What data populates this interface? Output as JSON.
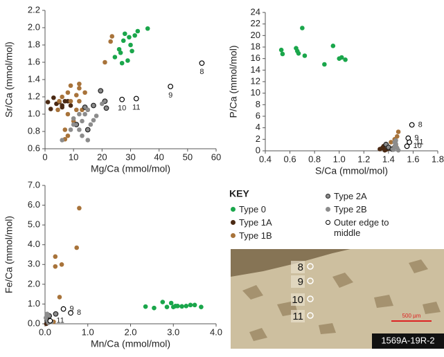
{
  "chart_data": [
    {
      "type": "scatter",
      "xlabel": "Mg/Ca (mmol/mol)",
      "ylabel": "Sr/Ca (mmol/mol)",
      "xlim": [
        0,
        60
      ],
      "xticks": [
        0,
        10,
        20,
        30,
        40,
        50,
        60
      ],
      "ylim": [
        0.6,
        2.2
      ],
      "yticks": [
        0.6,
        0.8,
        {
          "value": 1,
          "label": "1.0"
        },
        1.2,
        1.4,
        1.6,
        1.8,
        {
          "value": 2,
          "label": "2.0"
        },
        2.2
      ],
      "series": [
        {
          "name": "Type 0",
          "color": "#1aa64b",
          "x": [
            24.5,
            26.5,
            26,
            27.5,
            28,
            29.5,
            30,
            30.5,
            31.5,
            32.5,
            36,
            27,
            29
          ],
          "values": [
            1.66,
            1.71,
            1.75,
            1.85,
            1.93,
            1.89,
            1.8,
            1.73,
            1.91,
            1.96,
            1.99,
            1.59,
            1.62
          ]
        },
        {
          "name": "Type 1A",
          "color": "#4b2a14",
          "x": [
            1,
            3,
            4,
            5,
            6,
            2,
            8,
            9,
            6,
            7
          ],
          "values": [
            1.14,
            1.19,
            1.12,
            1.14,
            1.1,
            1.06,
            1.15,
            1.1,
            1.08,
            1.15
          ]
        },
        {
          "name": "Type 1B",
          "color": "#a8733a",
          "x": [
            23.5,
            23,
            21,
            9,
            12,
            12,
            8,
            11,
            14,
            5,
            6,
            9,
            12,
            13,
            11,
            8,
            15,
            4.5,
            7,
            10,
            8,
            7
          ],
          "values": [
            1.9,
            1.84,
            1.6,
            1.33,
            1.35,
            1.3,
            1.25,
            1.22,
            1.25,
            1.15,
            1.2,
            1.15,
            1.15,
            1.05,
            1.05,
            1.0,
            1.05,
            1.05,
            0.82,
            0.92,
            0.75,
            0.71
          ]
        },
        {
          "name": "Type 2A",
          "color": "#8c8c8c",
          "edge": "#222222",
          "x": [
            19.5,
            21,
            21.5,
            11,
            15,
            17,
            14
          ],
          "values": [
            1.27,
            1.15,
            1.07,
            0.88,
            0.82,
            1.1,
            1.08
          ]
        },
        {
          "name": "Type 2B",
          "color": "#8c8c8c",
          "x": [
            6,
            9,
            10,
            12,
            13,
            14,
            15,
            10,
            13,
            15,
            16,
            17,
            20,
            18,
            12
          ],
          "values": [
            0.7,
            0.82,
            0.88,
            0.82,
            0.92,
            1.0,
            1.05,
            0.95,
            0.75,
            0.7,
            0.88,
            0.93,
            1.12,
            0.98,
            1.0
          ]
        },
        {
          "name": "Outer edge to middle",
          "color": "#ffffff",
          "edge": "#000000",
          "x": [
            55,
            44,
            27,
            32
          ],
          "values": [
            1.59,
            1.32,
            1.17,
            1.18
          ],
          "point_labels": [
            "8",
            "9",
            "10",
            "11"
          ]
        }
      ]
    },
    {
      "type": "scatter",
      "xlabel": "S/Ca (mmol/mol)",
      "ylabel": "P/Ca (mmol/mol)",
      "xlim": [
        0.4,
        1.8
      ],
      "xticks": [
        0.4,
        0.6,
        0.8,
        {
          "value": 1,
          "label": "1.0"
        },
        1.2,
        1.4,
        1.6,
        1.8
      ],
      "ylim": [
        0,
        24
      ],
      "yticks": [
        0,
        2,
        4,
        6,
        8,
        10,
        12,
        14,
        16,
        18,
        20,
        22,
        24
      ],
      "series": [
        {
          "name": "Type 0",
          "color": "#1aa64b",
          "x": [
            0.53,
            0.54,
            0.65,
            0.66,
            0.7,
            0.72,
            0.88,
            0.95,
            1.0,
            1.02,
            1.05,
            0.67
          ],
          "values": [
            17.5,
            16.8,
            17.8,
            17.3,
            21.3,
            16.5,
            15.0,
            18.2,
            16.0,
            16.2,
            15.8,
            16.9
          ]
        },
        {
          "name": "Type 1A",
          "color": "#4b2a14",
          "x": [
            1.33,
            1.35,
            1.36,
            1.38,
            1.4,
            1.37
          ],
          "values": [
            0.3,
            0.5,
            0.8,
            0.2,
            0.4,
            0.1
          ]
        },
        {
          "name": "Type 1B",
          "color": "#a8733a",
          "x": [
            1.48,
            1.47,
            1.45,
            1.42,
            1.46,
            1.44
          ],
          "values": [
            3.3,
            2.5,
            2.0,
            1.5,
            1.0,
            0.5
          ]
        },
        {
          "name": "Type 2A",
          "color": "#8c8c8c",
          "edge": "#222222",
          "x": [
            1.38,
            1.4,
            1.43
          ],
          "values": [
            1.1,
            0.6,
            0.3
          ]
        },
        {
          "name": "Type 2B",
          "color": "#8c8c8c",
          "x": [
            1.44,
            1.45,
            1.46,
            1.47,
            1.48,
            1.46,
            1.45
          ],
          "values": [
            0.2,
            0.8,
            1.2,
            0.5,
            0.1,
            1.8,
            1.5
          ]
        },
        {
          "name": "Outer edge to middle",
          "color": "#ffffff",
          "edge": "#000000",
          "x": [
            1.59,
            1.56,
            1.57,
            1.55
          ],
          "values": [
            4.5,
            2.2,
            1.5,
            0.8
          ],
          "point_labels": [
            "8",
            "9",
            "11",
            "10"
          ]
        }
      ]
    },
    {
      "type": "scatter",
      "xlabel": "Mn/Ca (mmol/mol)",
      "ylabel": "Fe/Ca (mmol/mol)",
      "xlim": [
        0,
        4
      ],
      "xticks": [
        {
          "value": 0,
          "label": "0.0"
        },
        {
          "value": 1,
          "label": "1.0"
        },
        {
          "value": 2,
          "label": "2.0"
        },
        {
          "value": 3,
          "label": "3.0"
        },
        {
          "value": 4,
          "label": "4.0"
        }
      ],
      "ylim": [
        0,
        7
      ],
      "yticks": [
        {
          "value": 0,
          "label": "0.0"
        },
        {
          "value": 1,
          "label": "1.0"
        },
        {
          "value": 2,
          "label": "2.0"
        },
        {
          "value": 3,
          "label": "3.0"
        },
        {
          "value": 4,
          "label": "4.0"
        },
        {
          "value": 5,
          "label": "5.0"
        },
        {
          "value": 6,
          "label": "6.0"
        },
        {
          "value": 7,
          "label": "7.0"
        }
      ],
      "series": [
        {
          "name": "Type 0",
          "color": "#1aa64b",
          "x": [
            2.35,
            2.55,
            2.75,
            2.85,
            2.95,
            3.0,
            3.1,
            3.2,
            3.3,
            3.4,
            3.5,
            3.65,
            3.05
          ],
          "values": [
            0.87,
            0.8,
            1.1,
            0.85,
            1.05,
            0.85,
            0.9,
            0.88,
            0.9,
            0.95,
            0.95,
            0.85,
            0.9
          ]
        },
        {
          "name": "Type 1A",
          "color": "#4b2a14",
          "x": [
            0.05,
            0.08,
            0.12,
            0.03,
            0.15
          ],
          "values": [
            0.05,
            0.1,
            0.15,
            0.0,
            0.12
          ]
        },
        {
          "name": "Type 1B",
          "color": "#a8733a",
          "x": [
            0.8,
            0.74,
            0.24,
            0.39,
            0.24,
            0.34,
            0.1,
            0.2
          ],
          "values": [
            5.85,
            3.85,
            3.4,
            3.0,
            2.9,
            1.35,
            0.2,
            0.1
          ]
        },
        {
          "name": "Type 2A",
          "color": "#8c8c8c",
          "edge": "#222222",
          "x": [
            0.05,
            0.1,
            0.25
          ],
          "values": [
            0.15,
            0.4,
            0.5
          ]
        },
        {
          "name": "Type 2B",
          "color": "#8c8c8c",
          "x": [
            0.02,
            0.05,
            0.15,
            0.08
          ],
          "values": [
            0.3,
            0.5,
            0.1,
            0.05
          ]
        },
        {
          "name": "Outer edge to middle",
          "color": "#ffffff",
          "edge": "#000000",
          "x": [
            0.43,
            0.6,
            0.12
          ],
          "values": [
            0.75,
            0.55,
            0.15
          ],
          "point_labels": [
            "9",
            "8",
            "11"
          ]
        }
      ]
    }
  ],
  "key_title": "KEY",
  "micrograph": {
    "labels": [
      "8",
      "9",
      "10",
      "11"
    ],
    "scale": "500 µm",
    "sample": "1569A-19R-2"
  }
}
